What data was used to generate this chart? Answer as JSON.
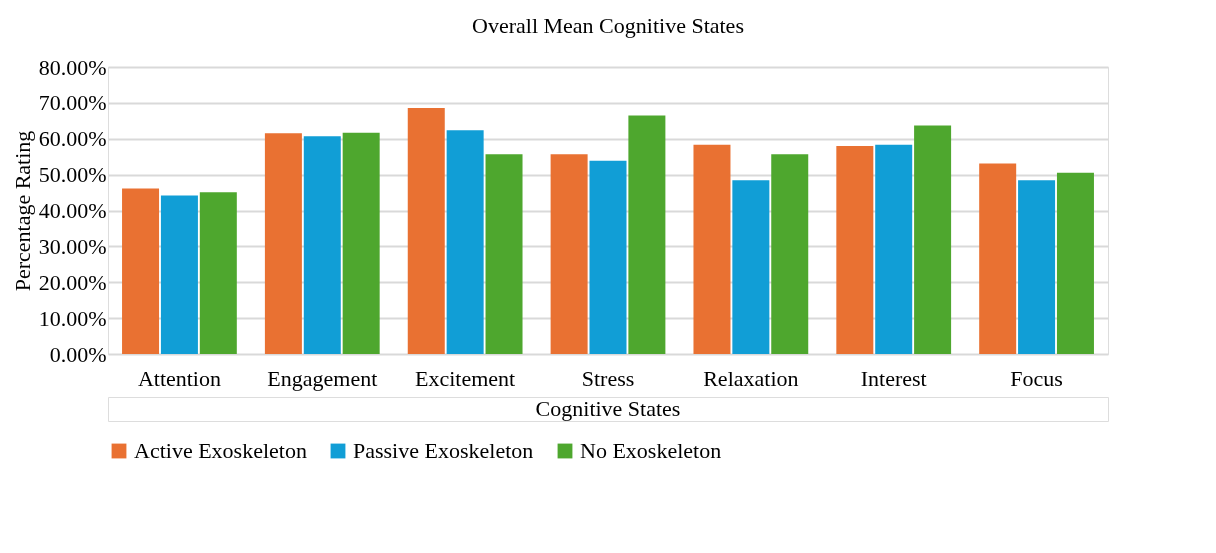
{
  "chart_data": {
    "type": "bar",
    "title": "Overall Mean Cognitive States",
    "xlabel": "Cognitive States",
    "ylabel": "Percentage Rating",
    "categories": [
      "Attention",
      "Engagement",
      "Excitement",
      "Stress",
      "Relaxation",
      "Interest",
      "Focus"
    ],
    "series": [
      {
        "name": "Active Exoskeleton",
        "color": "#e97132",
        "values": [
          46.1,
          61.5,
          68.6,
          55.7,
          58.3,
          58.0,
          53.1
        ]
      },
      {
        "name": "Passive Exoskeleton",
        "color": "#119ed6",
        "values": [
          44.2,
          60.7,
          62.4,
          53.9,
          48.4,
          58.3,
          48.4
        ]
      },
      {
        "name": "No Exoskeleton",
        "color": "#4ea72e",
        "values": [
          45.1,
          61.7,
          55.7,
          66.5,
          55.7,
          63.7,
          50.5
        ]
      }
    ],
    "ylim": [
      0,
      80
    ],
    "yticks": [
      {
        "value": 0,
        "label": "0.00%"
      },
      {
        "value": 10,
        "label": "10.00%"
      },
      {
        "value": 20,
        "label": "20.00%"
      },
      {
        "value": 30,
        "label": "30.00%"
      },
      {
        "value": 40,
        "label": "40.00%"
      },
      {
        "value": 50,
        "label": "50.00%"
      },
      {
        "value": 60,
        "label": "60.00%"
      },
      {
        "value": 70,
        "label": "70.00%"
      },
      {
        "value": 80,
        "label": "80.00%"
      }
    ],
    "grid": "y",
    "legend": "bottom"
  }
}
